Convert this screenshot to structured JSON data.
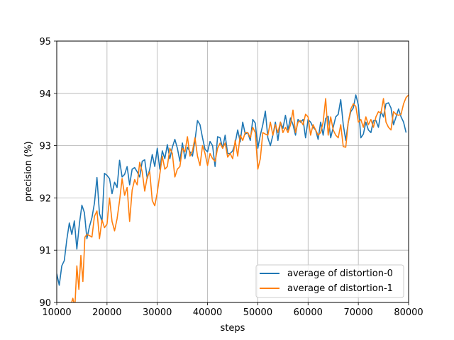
{
  "chart_data": {
    "type": "line",
    "xlabel": "steps",
    "ylabel": "precision (%)",
    "xlim": [
      10000,
      80000
    ],
    "ylim": [
      90,
      95
    ],
    "xticks": [
      10000,
      20000,
      30000,
      40000,
      50000,
      60000,
      70000,
      80000
    ],
    "yticks": [
      90,
      91,
      92,
      93,
      94,
      95
    ],
    "grid": true,
    "legend": "bottom-right",
    "series": [
      {
        "name": "average of distortion-0",
        "color": "#1f77b4",
        "points": [
          [
            10000,
            90.55
          ],
          [
            10500,
            90.33
          ],
          [
            11000,
            90.7
          ],
          [
            11500,
            90.8
          ],
          [
            12000,
            91.2
          ],
          [
            12500,
            91.52
          ],
          [
            13000,
            91.3
          ],
          [
            13500,
            91.56
          ],
          [
            14000,
            91.02
          ],
          [
            14500,
            91.5
          ],
          [
            15000,
            91.86
          ],
          [
            15500,
            91.72
          ],
          [
            16000,
            91.22
          ],
          [
            16500,
            91.45
          ],
          [
            17000,
            91.62
          ],
          [
            17500,
            91.9
          ],
          [
            18000,
            92.39
          ],
          [
            18500,
            91.7
          ],
          [
            19000,
            91.55
          ],
          [
            19500,
            92.47
          ],
          [
            20000,
            92.43
          ],
          [
            20500,
            92.37
          ],
          [
            21000,
            92.08
          ],
          [
            21500,
            92.3
          ],
          [
            22000,
            92.2
          ],
          [
            22500,
            92.72
          ],
          [
            23000,
            92.4
          ],
          [
            23500,
            92.45
          ],
          [
            24000,
            92.6
          ],
          [
            24500,
            92.25
          ],
          [
            25000,
            92.55
          ],
          [
            25500,
            92.58
          ],
          [
            26000,
            92.5
          ],
          [
            26500,
            92.4
          ],
          [
            27000,
            92.7
          ],
          [
            27500,
            92.73
          ],
          [
            28000,
            92.37
          ],
          [
            28500,
            92.55
          ],
          [
            29000,
            92.83
          ],
          [
            29500,
            92.6
          ],
          [
            30000,
            92.95
          ],
          [
            30500,
            92.55
          ],
          [
            31000,
            92.9
          ],
          [
            31500,
            92.75
          ],
          [
            32000,
            93.02
          ],
          [
            32500,
            92.75
          ],
          [
            33000,
            92.97
          ],
          [
            33500,
            93.12
          ],
          [
            34000,
            92.95
          ],
          [
            34500,
            92.7
          ],
          [
            35000,
            93.05
          ],
          [
            35500,
            92.75
          ],
          [
            36000,
            92.97
          ],
          [
            36500,
            92.88
          ],
          [
            37000,
            92.8
          ],
          [
            37500,
            93.1
          ],
          [
            38000,
            93.48
          ],
          [
            38500,
            93.4
          ],
          [
            39000,
            93.15
          ],
          [
            39500,
            92.93
          ],
          [
            40000,
            92.88
          ],
          [
            40500,
            93.08
          ],
          [
            41000,
            93.0
          ],
          [
            41500,
            92.6
          ],
          [
            42000,
            93.17
          ],
          [
            42500,
            93.15
          ],
          [
            43000,
            92.95
          ],
          [
            43500,
            93.2
          ],
          [
            44000,
            92.85
          ],
          [
            44500,
            92.85
          ],
          [
            45000,
            92.9
          ],
          [
            45500,
            93.05
          ],
          [
            46000,
            93.3
          ],
          [
            46500,
            93.07
          ],
          [
            47000,
            93.45
          ],
          [
            47500,
            93.22
          ],
          [
            48000,
            93.25
          ],
          [
            48500,
            93.1
          ],
          [
            49000,
            93.5
          ],
          [
            49500,
            93.43
          ],
          [
            50000,
            92.95
          ],
          [
            50500,
            93.2
          ],
          [
            51000,
            93.4
          ],
          [
            51500,
            93.66
          ],
          [
            52000,
            93.15
          ],
          [
            52500,
            93.0
          ],
          [
            53000,
            93.2
          ],
          [
            53500,
            93.45
          ],
          [
            54000,
            93.1
          ],
          [
            54500,
            93.45
          ],
          [
            55000,
            93.33
          ],
          [
            55500,
            93.58
          ],
          [
            56000,
            93.3
          ],
          [
            56500,
            93.53
          ],
          [
            57000,
            93.4
          ],
          [
            57500,
            93.2
          ],
          [
            58000,
            93.5
          ],
          [
            58500,
            93.45
          ],
          [
            59000,
            93.5
          ],
          [
            59500,
            93.15
          ],
          [
            60000,
            93.5
          ],
          [
            60500,
            93.45
          ],
          [
            61000,
            93.35
          ],
          [
            61500,
            93.3
          ],
          [
            62000,
            93.12
          ],
          [
            62500,
            93.45
          ],
          [
            63000,
            93.2
          ],
          [
            63500,
            93.52
          ],
          [
            64000,
            93.56
          ],
          [
            64500,
            93.15
          ],
          [
            65000,
            93.35
          ],
          [
            65500,
            93.55
          ],
          [
            66000,
            93.6
          ],
          [
            66500,
            93.88
          ],
          [
            67000,
            93.4
          ],
          [
            67500,
            93.1
          ],
          [
            68000,
            93.45
          ],
          [
            68500,
            93.65
          ],
          [
            69000,
            93.72
          ],
          [
            69500,
            93.97
          ],
          [
            70000,
            93.78
          ],
          [
            70500,
            93.15
          ],
          [
            71000,
            93.22
          ],
          [
            71500,
            93.45
          ],
          [
            72000,
            93.3
          ],
          [
            72500,
            93.25
          ],
          [
            73000,
            93.48
          ],
          [
            73500,
            93.48
          ],
          [
            74000,
            93.35
          ],
          [
            74500,
            93.65
          ],
          [
            75000,
            93.55
          ],
          [
            75500,
            93.8
          ],
          [
            76000,
            93.82
          ],
          [
            76500,
            93.72
          ],
          [
            77000,
            93.4
          ],
          [
            77500,
            93.55
          ],
          [
            78000,
            93.7
          ],
          [
            78500,
            93.55
          ],
          [
            79000,
            93.45
          ],
          [
            79500,
            93.25
          ]
        ]
      },
      {
        "name": "average of distortion-1",
        "color": "#ff7f0e",
        "points": [
          [
            12800,
            89.95
          ],
          [
            13200,
            90.08
          ],
          [
            13600,
            89.9
          ],
          [
            14000,
            90.7
          ],
          [
            14400,
            90.25
          ],
          [
            14800,
            90.9
          ],
          [
            15200,
            90.4
          ],
          [
            15600,
            91.25
          ],
          [
            16000,
            91.3
          ],
          [
            16500,
            91.28
          ],
          [
            17000,
            91.25
          ],
          [
            17500,
            91.65
          ],
          [
            18000,
            91.75
          ],
          [
            18500,
            91.22
          ],
          [
            19000,
            91.58
          ],
          [
            19500,
            91.43
          ],
          [
            20000,
            91.5
          ],
          [
            20500,
            92.0
          ],
          [
            21000,
            91.55
          ],
          [
            21500,
            91.37
          ],
          [
            22000,
            91.6
          ],
          [
            22500,
            91.95
          ],
          [
            23000,
            92.37
          ],
          [
            23500,
            92.05
          ],
          [
            24000,
            92.2
          ],
          [
            24500,
            91.55
          ],
          [
            25000,
            92.15
          ],
          [
            25500,
            92.35
          ],
          [
            26000,
            92.25
          ],
          [
            26500,
            92.68
          ],
          [
            27000,
            92.5
          ],
          [
            27500,
            92.13
          ],
          [
            28000,
            92.4
          ],
          [
            28500,
            92.5
          ],
          [
            29000,
            91.95
          ],
          [
            29500,
            91.85
          ],
          [
            30000,
            92.1
          ],
          [
            30500,
            92.45
          ],
          [
            31000,
            92.8
          ],
          [
            31500,
            92.55
          ],
          [
            32000,
            92.6
          ],
          [
            32500,
            92.95
          ],
          [
            33000,
            92.85
          ],
          [
            33500,
            92.4
          ],
          [
            34000,
            92.55
          ],
          [
            34500,
            92.6
          ],
          [
            35000,
            92.95
          ],
          [
            35500,
            92.88
          ],
          [
            36000,
            93.17
          ],
          [
            36500,
            92.8
          ],
          [
            37000,
            92.9
          ],
          [
            37500,
            93.15
          ],
          [
            38000,
            92.8
          ],
          [
            38500,
            92.62
          ],
          [
            39000,
            93.0
          ],
          [
            39500,
            92.85
          ],
          [
            40000,
            92.62
          ],
          [
            40500,
            92.85
          ],
          [
            41000,
            92.75
          ],
          [
            41500,
            92.7
          ],
          [
            42000,
            92.95
          ],
          [
            42500,
            93.05
          ],
          [
            43000,
            92.95
          ],
          [
            43500,
            93.05
          ],
          [
            44000,
            92.78
          ],
          [
            44500,
            92.85
          ],
          [
            45000,
            92.75
          ],
          [
            45500,
            93.1
          ],
          [
            46000,
            92.8
          ],
          [
            46500,
            93.2
          ],
          [
            47000,
            93.1
          ],
          [
            47500,
            93.25
          ],
          [
            48000,
            93.25
          ],
          [
            48500,
            93.15
          ],
          [
            49000,
            93.35
          ],
          [
            49500,
            93.25
          ],
          [
            50000,
            92.55
          ],
          [
            50500,
            92.75
          ],
          [
            51000,
            93.25
          ],
          [
            51500,
            93.22
          ],
          [
            52000,
            93.2
          ],
          [
            52500,
            93.45
          ],
          [
            53000,
            93.2
          ],
          [
            53500,
            93.4
          ],
          [
            54000,
            93.25
          ],
          [
            54500,
            93.45
          ],
          [
            55000,
            93.25
          ],
          [
            55500,
            93.35
          ],
          [
            56000,
            93.25
          ],
          [
            56500,
            93.4
          ],
          [
            57000,
            93.68
          ],
          [
            57500,
            93.25
          ],
          [
            58000,
            93.45
          ],
          [
            58500,
            93.48
          ],
          [
            59000,
            93.4
          ],
          [
            59500,
            93.6
          ],
          [
            60000,
            93.55
          ],
          [
            60500,
            93.2
          ],
          [
            61000,
            93.4
          ],
          [
            61500,
            93.3
          ],
          [
            62000,
            93.2
          ],
          [
            62500,
            93.25
          ],
          [
            63000,
            93.45
          ],
          [
            63500,
            93.9
          ],
          [
            64000,
            93.2
          ],
          [
            64500,
            93.55
          ],
          [
            65000,
            93.3
          ],
          [
            65500,
            93.2
          ],
          [
            66000,
            93.15
          ],
          [
            66500,
            93.4
          ],
          [
            67000,
            92.98
          ],
          [
            67500,
            92.97
          ],
          [
            68000,
            93.45
          ],
          [
            68500,
            93.7
          ],
          [
            69000,
            93.8
          ],
          [
            69500,
            93.75
          ],
          [
            70000,
            93.45
          ],
          [
            70500,
            93.5
          ],
          [
            71000,
            93.35
          ],
          [
            71500,
            93.55
          ],
          [
            72000,
            93.4
          ],
          [
            72500,
            93.5
          ],
          [
            73000,
            93.35
          ],
          [
            73500,
            93.55
          ],
          [
            74000,
            93.65
          ],
          [
            74500,
            93.62
          ],
          [
            75000,
            93.9
          ],
          [
            75500,
            93.45
          ],
          [
            76000,
            93.35
          ],
          [
            76500,
            93.3
          ],
          [
            77000,
            93.65
          ],
          [
            77500,
            93.6
          ],
          [
            78000,
            93.58
          ],
          [
            78500,
            93.6
          ],
          [
            79000,
            93.8
          ],
          [
            79500,
            93.92
          ],
          [
            80000,
            93.97
          ]
        ]
      }
    ]
  }
}
